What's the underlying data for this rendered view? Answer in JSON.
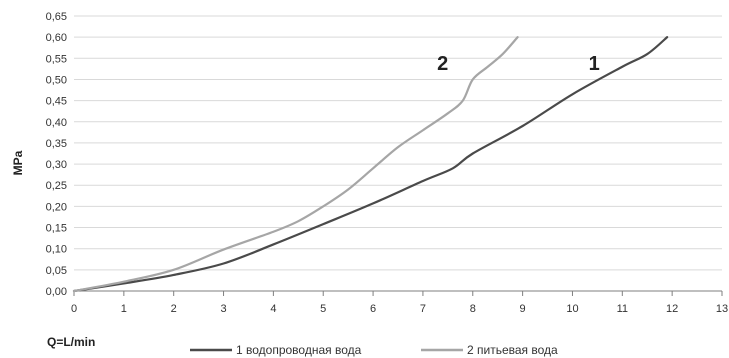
{
  "chart_data": {
    "type": "line",
    "title": "",
    "xlabel": "Q=L/min",
    "ylabel": "MPa",
    "xlim": [
      0,
      13
    ],
    "ylim": [
      0,
      0.65
    ],
    "x_ticks": [
      "0",
      "1",
      "2",
      "3",
      "4",
      "5",
      "6",
      "7",
      "8",
      "9",
      "10",
      "11",
      "12",
      "13"
    ],
    "y_ticks": [
      "0,00",
      "0,05",
      "0,10",
      "0,15",
      "0,20",
      "0,25",
      "0,30",
      "0,35",
      "0,40",
      "0,45",
      "0,50",
      "0,55",
      "0,60",
      "0,65"
    ],
    "grid": "horizontal",
    "legend_position": "bottom",
    "series": [
      {
        "name": "1 водопроводная вода",
        "label": "1",
        "color": "#4a4a4a",
        "x": [
          0,
          1,
          2,
          3,
          4,
          5,
          6,
          7,
          7.6,
          8,
          9,
          10,
          11,
          11.5,
          11.9
        ],
        "y": [
          0,
          0.018,
          0.038,
          0.065,
          0.11,
          0.158,
          0.207,
          0.26,
          0.29,
          0.325,
          0.39,
          0.465,
          0.53,
          0.56,
          0.6
        ]
      },
      {
        "name": "2 питьевая вода",
        "label": "2",
        "color": "#a6a6a6",
        "x": [
          0,
          1,
          2,
          3,
          4,
          4.5,
          5,
          5.5,
          6,
          6.5,
          7,
          7.5,
          7.8,
          8.0,
          8.3,
          8.6,
          8.9
        ],
        "y": [
          0,
          0.022,
          0.05,
          0.098,
          0.14,
          0.165,
          0.2,
          0.24,
          0.29,
          0.34,
          0.38,
          0.42,
          0.45,
          0.5,
          0.53,
          0.56,
          0.6
        ]
      }
    ]
  }
}
